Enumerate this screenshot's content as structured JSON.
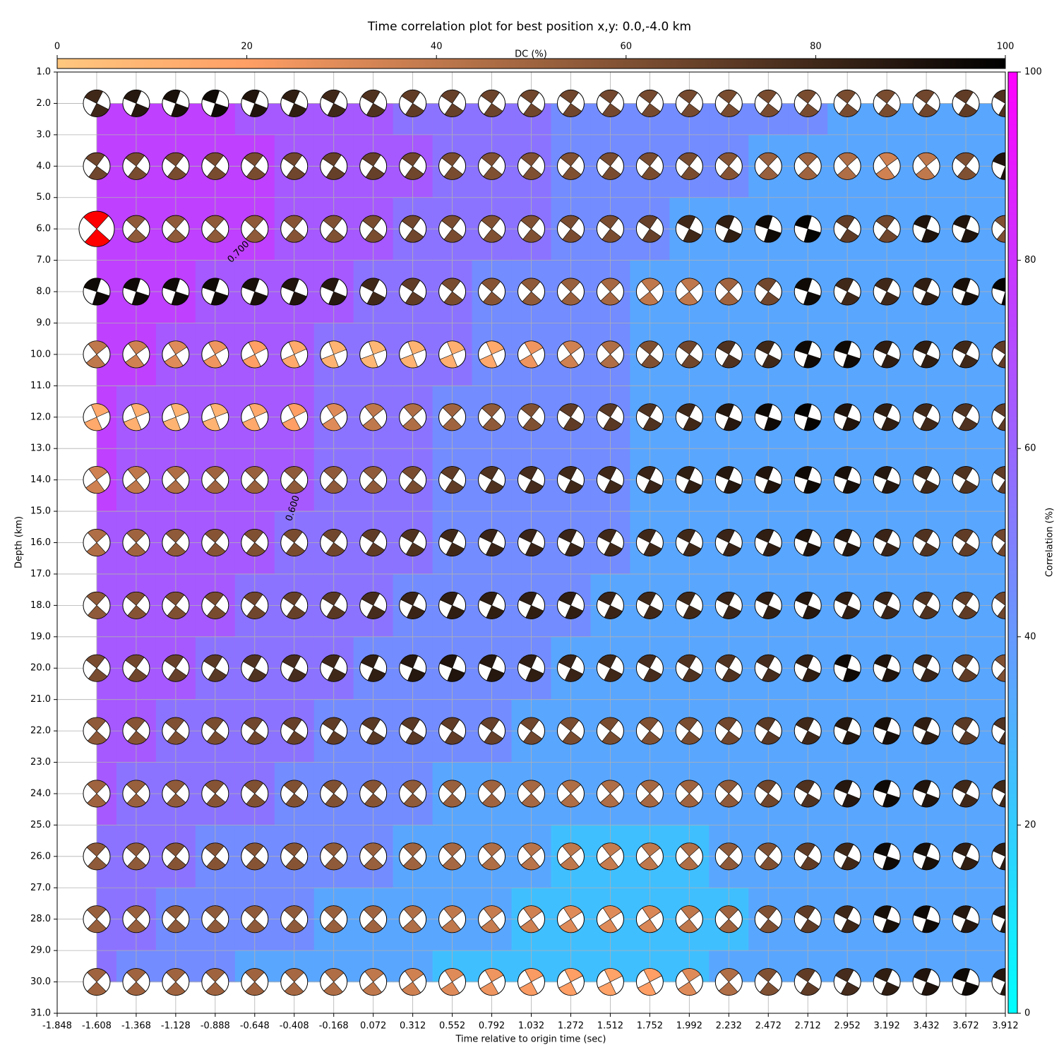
{
  "chart_data": {
    "type": "beachball_grid",
    "title": "Time correlation plot for best position x,y: 0.0,-4.0 km",
    "xlabel": "Time relative to origin time (sec)",
    "ylabel": "Depth (km)",
    "xlim": [
      -1.848,
      3.912
    ],
    "ylim": [
      1,
      31
    ],
    "xticks": [
      -1.848,
      -1.608,
      -1.368,
      -1.128,
      -0.888,
      -0.648,
      -0.408,
      -0.168,
      0.072,
      0.312,
      0.552,
      0.792,
      1.032,
      1.272,
      1.512,
      1.752,
      1.992,
      2.232,
      2.472,
      2.712,
      2.952,
      3.192,
      3.432,
      3.672,
      3.912
    ],
    "yticks": [
      {
        "value": 1,
        "label": "1.0"
      },
      {
        "value": 2,
        "label": "2.0"
      },
      {
        "value": 3,
        "label": "3.0"
      },
      {
        "value": 4,
        "label": "4.0"
      },
      {
        "value": 5,
        "label": "5.0"
      },
      {
        "value": 6,
        "label": "6.0"
      },
      {
        "value": 7,
        "label": "7.0"
      },
      {
        "value": 8,
        "label": "8.0"
      },
      {
        "value": 9,
        "label": "9.0"
      },
      {
        "value": 10,
        "label": "10.0"
      },
      {
        "value": 11,
        "label": "11.0"
      },
      {
        "value": 12,
        "label": "12.0"
      },
      {
        "value": 13,
        "label": "13.0"
      },
      {
        "value": 14,
        "label": "14.0"
      },
      {
        "value": 15,
        "label": "15.0"
      },
      {
        "value": 16,
        "label": "16.0"
      },
      {
        "value": 17,
        "label": "17.0"
      },
      {
        "value": 18,
        "label": "18.0"
      },
      {
        "value": 19,
        "label": "19.0"
      },
      {
        "value": 20,
        "label": "20.0"
      },
      {
        "value": 21,
        "label": "21.0"
      },
      {
        "value": 22,
        "label": "22.0"
      },
      {
        "value": 23,
        "label": "23.0"
      },
      {
        "value": 24,
        "label": "24.0"
      },
      {
        "value": 25,
        "label": "25.0"
      },
      {
        "value": 26,
        "label": "26.0"
      },
      {
        "value": 27,
        "label": "27.0"
      },
      {
        "value": 28,
        "label": "28.0"
      },
      {
        "value": 29,
        "label": "29.0"
      },
      {
        "value": 30,
        "label": "30.0"
      },
      {
        "value": 31,
        "label": "31.0"
      }
    ],
    "grid": true,
    "x": [
      -1.608,
      -1.368,
      -1.128,
      -0.888,
      -0.648,
      -0.408,
      -0.168,
      0.072,
      0.312,
      0.552,
      0.792,
      1.032,
      1.272,
      1.512,
      1.752,
      1.992,
      2.232,
      2.472,
      2.712,
      2.952,
      3.192,
      3.432,
      3.672,
      3.912
    ],
    "depths": [
      2,
      4,
      6,
      8,
      10,
      12,
      14,
      16,
      18,
      20,
      22,
      24,
      26,
      28,
      30
    ],
    "best": {
      "x": -1.608,
      "depth": 6,
      "color": "#ff0000"
    },
    "dc_colormap": "copper_r",
    "correlation_colormap": "cool",
    "dc": [
      [
        80,
        88,
        92,
        95,
        90,
        85,
        80,
        75,
        70,
        68,
        66,
        65,
        65,
        64,
        63,
        63,
        62,
        62,
        62,
        62,
        62,
        65,
        70,
        75
      ],
      [
        65,
        62,
        62,
        62,
        62,
        65,
        68,
        68,
        65,
        62,
        60,
        60,
        60,
        62,
        62,
        62,
        58,
        52,
        50,
        45,
        35,
        40,
        60,
        90
      ],
      [
        55,
        55,
        55,
        55,
        55,
        58,
        60,
        62,
        65,
        62,
        60,
        60,
        62,
        62,
        68,
        80,
        85,
        95,
        98,
        70,
        65,
        90,
        90,
        60
      ],
      [
        95,
        95,
        95,
        95,
        92,
        90,
        88,
        80,
        70,
        62,
        58,
        55,
        52,
        48,
        40,
        40,
        50,
        65,
        95,
        80,
        80,
        85,
        92,
        98
      ],
      [
        40,
        35,
        30,
        25,
        20,
        15,
        10,
        8,
        10,
        12,
        15,
        25,
        35,
        45,
        60,
        65,
        75,
        80,
        95,
        95,
        85,
        85,
        80,
        70
      ],
      [
        15,
        12,
        10,
        10,
        15,
        20,
        30,
        40,
        45,
        50,
        55,
        60,
        70,
        72,
        75,
        80,
        88,
        95,
        98,
        90,
        85,
        80,
        75,
        70
      ],
      [
        35,
        40,
        45,
        50,
        52,
        55,
        55,
        55,
        62,
        70,
        75,
        78,
        80,
        80,
        82,
        85,
        88,
        90,
        95,
        92,
        88,
        80,
        75,
        70
      ],
      [
        45,
        50,
        55,
        58,
        60,
        62,
        65,
        70,
        75,
        80,
        82,
        82,
        82,
        80,
        80,
        80,
        82,
        85,
        90,
        88,
        82,
        75,
        70,
        65
      ],
      [
        55,
        58,
        60,
        62,
        65,
        68,
        72,
        78,
        82,
        85,
        85,
        85,
        85,
        82,
        80,
        80,
        82,
        85,
        88,
        85,
        82,
        75,
        70,
        65
      ],
      [
        62,
        65,
        68,
        72,
        75,
        78,
        80,
        85,
        88,
        90,
        88,
        85,
        82,
        80,
        78,
        75,
        75,
        78,
        85,
        95,
        90,
        82,
        70,
        60
      ],
      [
        55,
        58,
        60,
        62,
        65,
        68,
        70,
        72,
        72,
        70,
        68,
        65,
        62,
        62,
        60,
        62,
        65,
        72,
        80,
        88,
        92,
        85,
        72,
        75
      ],
      [
        50,
        52,
        55,
        58,
        60,
        60,
        60,
        58,
        55,
        52,
        50,
        48,
        45,
        45,
        48,
        50,
        55,
        65,
        75,
        88,
        95,
        90,
        80,
        80
      ],
      [
        55,
        55,
        58,
        58,
        58,
        58,
        55,
        52,
        50,
        48,
        45,
        42,
        40,
        38,
        40,
        45,
        55,
        60,
        70,
        80,
        95,
        92,
        85,
        85
      ],
      [
        52,
        52,
        55,
        55,
        55,
        55,
        52,
        50,
        45,
        40,
        38,
        35,
        30,
        30,
        32,
        40,
        50,
        60,
        70,
        80,
        92,
        95,
        88,
        88
      ],
      [
        50,
        50,
        50,
        50,
        50,
        48,
        45,
        40,
        35,
        30,
        25,
        22,
        20,
        18,
        20,
        30,
        45,
        60,
        70,
        78,
        85,
        90,
        95,
        88
      ]
    ],
    "correlation": [
      [
        75,
        75,
        75,
        75,
        65,
        65,
        65,
        65,
        55,
        55,
        55,
        55,
        45,
        45,
        45,
        45,
        45,
        45,
        45,
        35,
        35,
        35,
        35,
        35
      ],
      [
        75,
        75,
        75,
        75,
        75,
        65,
        65,
        65,
        65,
        55,
        55,
        55,
        45,
        45,
        45,
        45,
        45,
        35,
        35,
        35,
        35,
        35,
        35,
        35
      ],
      [
        75,
        75,
        75,
        75,
        75,
        65,
        65,
        65,
        55,
        55,
        55,
        55,
        45,
        45,
        45,
        35,
        35,
        35,
        35,
        35,
        35,
        35,
        35,
        35
      ],
      [
        75,
        75,
        75,
        65,
        65,
        65,
        65,
        55,
        55,
        55,
        45,
        45,
        45,
        45,
        35,
        35,
        35,
        35,
        35,
        35,
        35,
        35,
        35,
        35
      ],
      [
        75,
        75,
        65,
        65,
        65,
        65,
        55,
        55,
        55,
        55,
        45,
        45,
        45,
        45,
        35,
        35,
        35,
        35,
        35,
        35,
        35,
        35,
        35,
        35
      ],
      [
        75,
        65,
        65,
        65,
        65,
        65,
        55,
        55,
        55,
        45,
        45,
        45,
        45,
        45,
        35,
        35,
        35,
        35,
        35,
        35,
        35,
        35,
        35,
        35
      ],
      [
        75,
        65,
        65,
        65,
        65,
        65,
        55,
        55,
        55,
        45,
        45,
        45,
        45,
        45,
        35,
        35,
        35,
        35,
        35,
        35,
        35,
        35,
        35,
        35
      ],
      [
        65,
        65,
        65,
        65,
        65,
        55,
        55,
        55,
        55,
        45,
        45,
        45,
        45,
        45,
        35,
        35,
        35,
        35,
        35,
        35,
        35,
        35,
        35,
        35
      ],
      [
        65,
        65,
        65,
        65,
        55,
        55,
        55,
        55,
        45,
        45,
        45,
        45,
        45,
        35,
        35,
        35,
        35,
        35,
        35,
        35,
        35,
        35,
        35,
        35
      ],
      [
        65,
        65,
        65,
        55,
        55,
        55,
        55,
        45,
        45,
        45,
        45,
        45,
        35,
        35,
        35,
        35,
        35,
        35,
        35,
        35,
        35,
        35,
        35,
        35
      ],
      [
        65,
        65,
        55,
        55,
        55,
        55,
        45,
        45,
        45,
        45,
        45,
        35,
        35,
        35,
        35,
        35,
        35,
        35,
        35,
        35,
        35,
        35,
        35,
        35
      ],
      [
        65,
        55,
        55,
        55,
        55,
        45,
        45,
        45,
        45,
        35,
        35,
        35,
        35,
        35,
        35,
        35,
        35,
        35,
        35,
        35,
        35,
        35,
        35,
        35
      ],
      [
        55,
        55,
        55,
        45,
        45,
        45,
        45,
        45,
        35,
        35,
        35,
        35,
        25,
        25,
        25,
        25,
        35,
        35,
        35,
        35,
        35,
        35,
        35,
        35
      ],
      [
        55,
        55,
        45,
        45,
        45,
        45,
        35,
        35,
        35,
        35,
        35,
        25,
        25,
        25,
        25,
        25,
        25,
        35,
        35,
        35,
        35,
        35,
        35,
        35
      ],
      [
        55,
        45,
        45,
        45,
        35,
        35,
        35,
        35,
        35,
        25,
        25,
        25,
        25,
        25,
        25,
        25,
        35,
        35,
        35,
        35,
        35,
        35,
        35,
        35
      ]
    ],
    "dc_colorbar": {
      "label": "DC (%)",
      "lim": [
        0,
        100
      ],
      "ticks": [
        0,
        20,
        40,
        60,
        80,
        100
      ]
    },
    "correlation_colorbar": {
      "label": "Correlation (%)",
      "lim": [
        0,
        100
      ],
      "ticks": [
        0,
        20,
        40,
        60,
        80,
        100
      ]
    },
    "contour_labels": [
      "0.700",
      "0.600"
    ]
  }
}
